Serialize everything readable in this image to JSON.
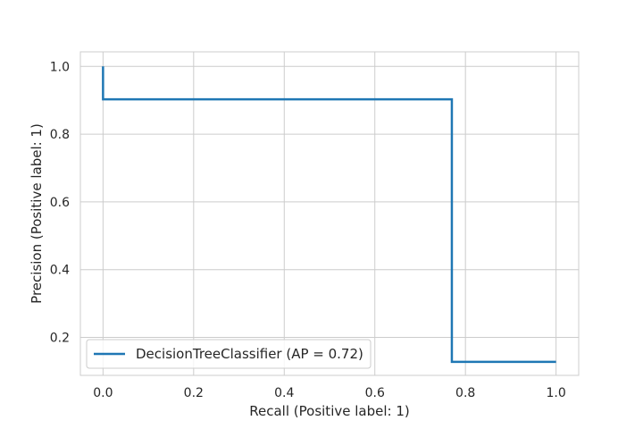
{
  "chart_data": {
    "type": "line",
    "title": "",
    "xlabel": "Recall (Positive label: 1)",
    "ylabel": "Precision (Positive label: 1)",
    "xlim": [
      -0.05,
      1.05
    ],
    "ylim": [
      0.088,
      1.043
    ],
    "grid": true,
    "legend_position": "lower-left",
    "x_ticks": [
      0.0,
      0.2,
      0.4,
      0.6,
      0.8,
      1.0
    ],
    "x_tick_labels": [
      "0.0",
      "0.2",
      "0.4",
      "0.6",
      "0.8",
      "1.0"
    ],
    "y_ticks": [
      0.2,
      0.4,
      0.6,
      0.8,
      1.0
    ],
    "y_tick_labels": [
      "0.2",
      "0.4",
      "0.6",
      "0.8",
      "1.0"
    ],
    "series": [
      {
        "name": "DecisionTreeClassifier (AP = 0.72)",
        "drawstyle": "steps-post",
        "color": "#1f77b4",
        "x": [
          1.0,
          0.77,
          0.0,
          0.0
        ],
        "y": [
          0.128,
          0.903,
          0.903,
          1.0
        ]
      }
    ]
  }
}
